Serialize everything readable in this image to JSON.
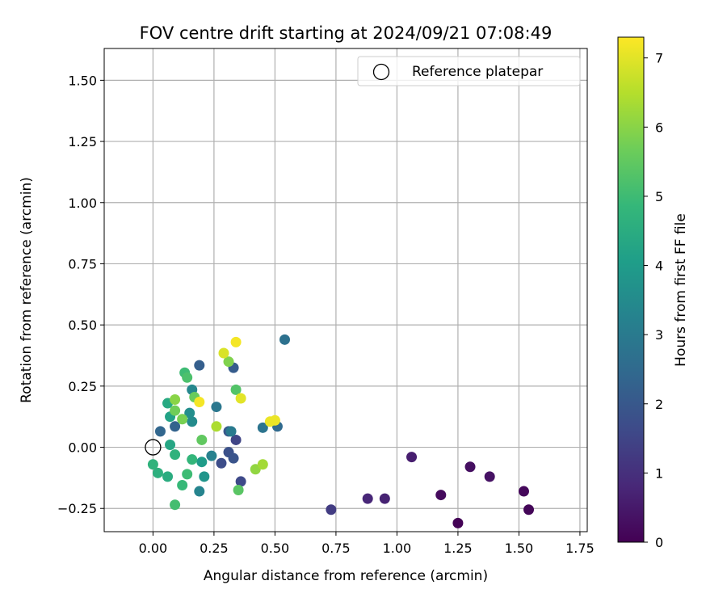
{
  "chart_data": {
    "type": "scatter",
    "title": "FOV centre drift starting at 2024/09/21 07:08:49",
    "xlabel": "Angular distance from reference (arcmin)",
    "ylabel": "Rotation from reference (arcmin)",
    "xlim": [
      -0.2,
      1.78
    ],
    "ylim": [
      -0.345,
      1.63
    ],
    "xticks": [
      0.0,
      0.25,
      0.5,
      0.75,
      1.0,
      1.25,
      1.5,
      1.75
    ],
    "xtick_labels": [
      "0.00",
      "0.25",
      "0.50",
      "0.75",
      "1.00",
      "1.25",
      "1.50",
      "1.75"
    ],
    "yticks": [
      -0.25,
      0.0,
      0.25,
      0.5,
      0.75,
      1.0,
      1.25,
      1.5
    ],
    "ytick_labels": [
      "−0.25",
      "0.00",
      "0.25",
      "0.50",
      "0.75",
      "1.00",
      "1.25",
      "1.50"
    ],
    "grid": true,
    "legend": {
      "placement": "top-right",
      "entries": [
        {
          "label": "Reference platepar",
          "marker": "open-circle"
        }
      ]
    },
    "reference_point": {
      "x": 0.0,
      "y": 0.0
    },
    "colorbar": {
      "label": "Hours from first FF file",
      "colormap": "viridis",
      "range": [
        0,
        7.3
      ],
      "ticks": [
        0,
        1,
        2,
        3,
        4,
        5,
        6,
        7
      ],
      "tick_labels": [
        "0",
        "1",
        "2",
        "3",
        "4",
        "5",
        "6",
        "7"
      ]
    },
    "points": [
      {
        "x": 1.25,
        "y": -0.31,
        "c": 0.05
      },
      {
        "x": 1.54,
        "y": -0.255,
        "c": 0.1
      },
      {
        "x": 1.52,
        "y": -0.18,
        "c": 0.15
      },
      {
        "x": 1.18,
        "y": -0.195,
        "c": 0.2
      },
      {
        "x": 1.3,
        "y": -0.08,
        "c": 0.3
      },
      {
        "x": 1.38,
        "y": -0.12,
        "c": 0.35
      },
      {
        "x": 1.06,
        "y": -0.04,
        "c": 0.6
      },
      {
        "x": 0.95,
        "y": -0.21,
        "c": 0.7
      },
      {
        "x": 0.88,
        "y": -0.21,
        "c": 0.8
      },
      {
        "x": 0.73,
        "y": -0.255,
        "c": 1.3
      },
      {
        "x": 0.34,
        "y": 0.03,
        "c": 1.5
      },
      {
        "x": 0.36,
        "y": -0.14,
        "c": 1.6
      },
      {
        "x": 0.28,
        "y": -0.065,
        "c": 1.7
      },
      {
        "x": 0.31,
        "y": -0.02,
        "c": 1.8
      },
      {
        "x": 0.33,
        "y": -0.045,
        "c": 1.9
      },
      {
        "x": 0.31,
        "y": 0.065,
        "c": 2.0
      },
      {
        "x": 0.33,
        "y": 0.325,
        "c": 2.1
      },
      {
        "x": 0.19,
        "y": 0.335,
        "c": 2.2
      },
      {
        "x": 0.09,
        "y": 0.085,
        "c": 2.3
      },
      {
        "x": 0.03,
        "y": 0.065,
        "c": 2.4
      },
      {
        "x": 0.51,
        "y": 0.085,
        "c": 2.5
      },
      {
        "x": 0.54,
        "y": 0.44,
        "c": 2.7
      },
      {
        "x": 0.45,
        "y": 0.08,
        "c": 2.8
      },
      {
        "x": 0.26,
        "y": 0.165,
        "c": 2.9
      },
      {
        "x": 0.32,
        "y": 0.065,
        "c": 3.0
      },
      {
        "x": 0.24,
        "y": -0.035,
        "c": 3.2
      },
      {
        "x": 0.19,
        "y": -0.18,
        "c": 3.3
      },
      {
        "x": 0.16,
        "y": 0.235,
        "c": 3.4
      },
      {
        "x": 0.16,
        "y": 0.105,
        "c": 3.5
      },
      {
        "x": 0.15,
        "y": 0.14,
        "c": 3.6
      },
      {
        "x": 0.21,
        "y": -0.12,
        "c": 3.8
      },
      {
        "x": 0.2,
        "y": -0.06,
        "c": 4.0
      },
      {
        "x": 0.07,
        "y": 0.125,
        "c": 4.2
      },
      {
        "x": 0.07,
        "y": 0.01,
        "c": 4.3
      },
      {
        "x": 0.06,
        "y": 0.18,
        "c": 4.4
      },
      {
        "x": 0.06,
        "y": -0.12,
        "c": 4.5
      },
      {
        "x": 0.02,
        "y": -0.105,
        "c": 4.6
      },
      {
        "x": 0.0,
        "y": -0.07,
        "c": 4.7
      },
      {
        "x": 0.09,
        "y": -0.03,
        "c": 4.7
      },
      {
        "x": 0.16,
        "y": -0.05,
        "c": 4.8
      },
      {
        "x": 0.12,
        "y": -0.155,
        "c": 4.9
      },
      {
        "x": 0.14,
        "y": -0.11,
        "c": 5.0
      },
      {
        "x": 0.13,
        "y": 0.305,
        "c": 5.0
      },
      {
        "x": 0.09,
        "y": -0.235,
        "c": 5.1
      },
      {
        "x": 0.14,
        "y": 0.285,
        "c": 5.2
      },
      {
        "x": 0.34,
        "y": 0.235,
        "c": 5.3
      },
      {
        "x": 0.35,
        "y": -0.175,
        "c": 5.4
      },
      {
        "x": 0.2,
        "y": 0.03,
        "c": 5.5
      },
      {
        "x": 0.17,
        "y": 0.205,
        "c": 5.6
      },
      {
        "x": 0.09,
        "y": 0.15,
        "c": 5.7
      },
      {
        "x": 0.12,
        "y": 0.115,
        "c": 5.8
      },
      {
        "x": 0.31,
        "y": 0.35,
        "c": 5.9
      },
      {
        "x": 0.09,
        "y": 0.195,
        "c": 6.0
      },
      {
        "x": 0.42,
        "y": -0.09,
        "c": 6.1
      },
      {
        "x": 0.45,
        "y": -0.07,
        "c": 6.3
      },
      {
        "x": 0.26,
        "y": 0.085,
        "c": 6.4
      },
      {
        "x": 0.29,
        "y": 0.385,
        "c": 6.9
      },
      {
        "x": 0.36,
        "y": 0.2,
        "c": 7.0
      },
      {
        "x": 0.48,
        "y": 0.105,
        "c": 7.1
      },
      {
        "x": 0.5,
        "y": 0.11,
        "c": 7.1
      },
      {
        "x": 0.19,
        "y": 0.185,
        "c": 7.2
      },
      {
        "x": 0.34,
        "y": 0.43,
        "c": 7.2
      }
    ]
  }
}
